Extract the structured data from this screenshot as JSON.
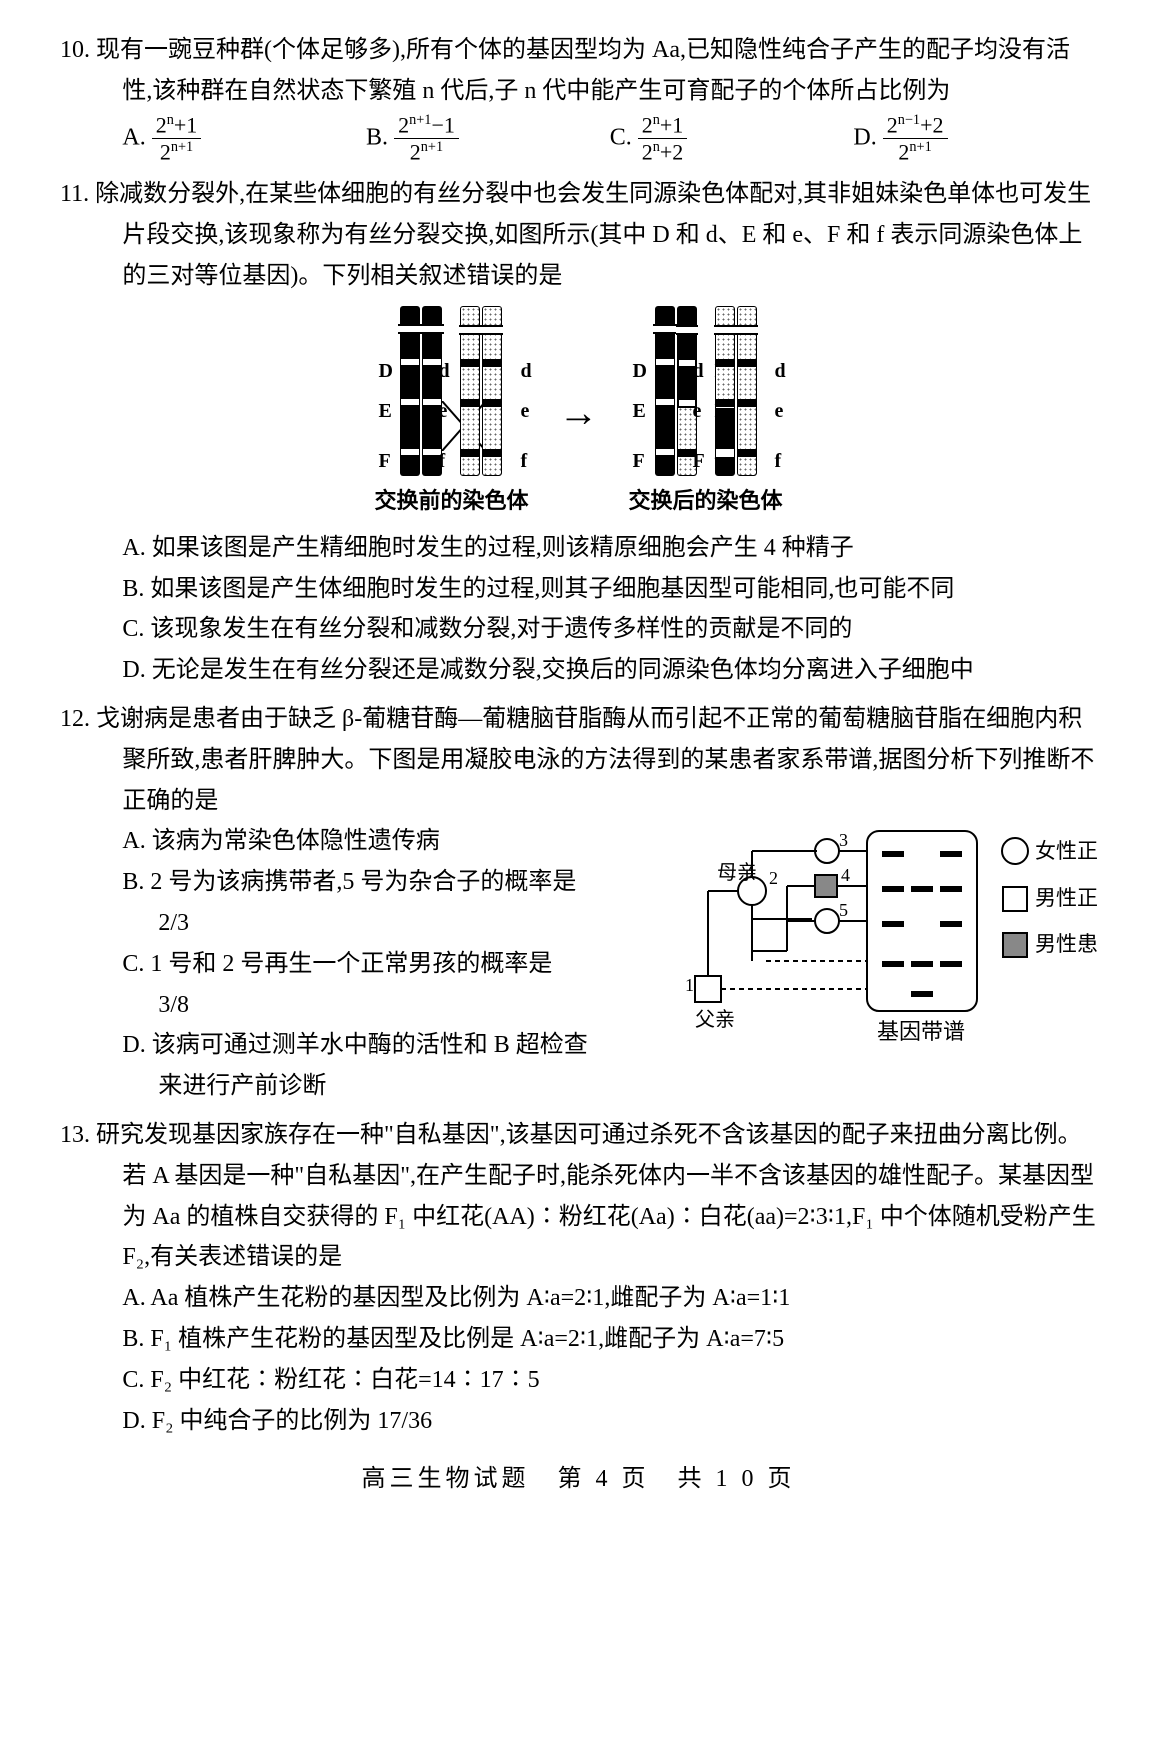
{
  "footer": "高三生物试题　第 4 页　共 1 0 页",
  "q10": {
    "num": "10.",
    "stem": "现有一豌豆种群(个体足够多),所有个体的基因型均为 Aa,已知隐性纯合子产生的配子均没有活性,该种群在自然状态下繁殖 n 代后,子 n 代中能产生可育配子的个体所占比例为",
    "opts": {
      "a_label": "A.",
      "a_num": "2<sup>n</sup>+1",
      "a_den": "2<sup>n+1</sup>",
      "b_label": "B.",
      "b_num": "2<sup>n+1</sup>−1",
      "b_den": "2<sup>n+1</sup>",
      "c_label": "C.",
      "c_num": "2<sup>n</sup>+1",
      "c_den": "2<sup>n</sup>+2",
      "d_label": "D.",
      "d_num": "2<sup>n−1</sup>+2",
      "d_den": "2<sup>n+1</sup>"
    }
  },
  "q11": {
    "num": "11.",
    "stem": "除减数分裂外,在某些体细胞的有丝分裂中也会发生同源染色体配对,其非姐妹染色单体也可发生片段交换,该现象称为有丝分裂交换,如图所示(其中 D 和 d、E 和 e、F 和 f 表示同源染色体上的三对等位基因)。下列相关叙述错误的是",
    "cap_before": "交换前的染色体",
    "cap_after": "交换后的染色体",
    "a": "A. 如果该图是产生精细胞时发生的过程,则该精原细胞会产生 4 种精子",
    "b": "B. 如果该图是产生体细胞时发生的过程,则其子细胞基因型可能相同,也可能不同",
    "c": "C. 该现象发生在有丝分裂和减数分裂,对于遗传多样性的贡献是不同的",
    "d": "D. 无论是发生在有丝分裂还是减数分裂,交换后的同源染色体均分离进入子细胞中"
  },
  "q12": {
    "num": "12.",
    "stem": "戈谢病是患者由于缺乏 β-葡糖苷酶—葡糖脑苷脂酶从而引起不正常的葡萄糖脑苷脂在细胞内积聚所致,患者肝脾肿大。下图是用凝胶电泳的方法得到的某患者家系带谱,据图分析下列推断不正确的是",
    "a": "A. 该病为常染色体隐性遗传病",
    "b1": "B. 2 号为该病携带者,5 号为杂合子的概率是",
    "b2": "2/3",
    "c1": "C. 1 号和 2 号再生一个正常男孩的概率是",
    "c2": "3/8",
    "d1": "D. 该病可通过测羊水中酶的活性和 B 超检查",
    "d2": "来进行产前诊断",
    "fig": {
      "mother": "母亲",
      "father": "父亲",
      "caption": "基因带谱",
      "legend_f": "女性正常",
      "legend_m": "男性正常",
      "legend_a": "男性患者"
    }
  },
  "q13": {
    "num": "13.",
    "stem": "研究发现基因家族存在一种\"自私基因\",该基因可通过杀死不含该基因的配子来扭曲分离比例。若 A 基因是一种\"自私基因\",在产生配子时,能杀死体内一半不含该基因的雄性配子。某基因型为 Aa 的植株自交获得的 F₁ 中红花(AA)∶粉红花(Aa)∶白花(aa)=2∶3∶1,F₁ 中个体随机受粉产生 F₂,有关表述错误的是",
    "a": "A. Aa 植株产生花粉的基因型及比例为 A∶a=2∶1,雌配子为 A∶a=1∶1",
    "b": "B. F₁ 植株产生花粉的基因型及比例是 A∶a=2∶1,雌配子为 A∶a=7∶5",
    "c": "C. F₂ 中红花∶粉红花∶白花=14∶17∶5",
    "d": "D. F₂ 中纯合子的比例为 17/36"
  }
}
